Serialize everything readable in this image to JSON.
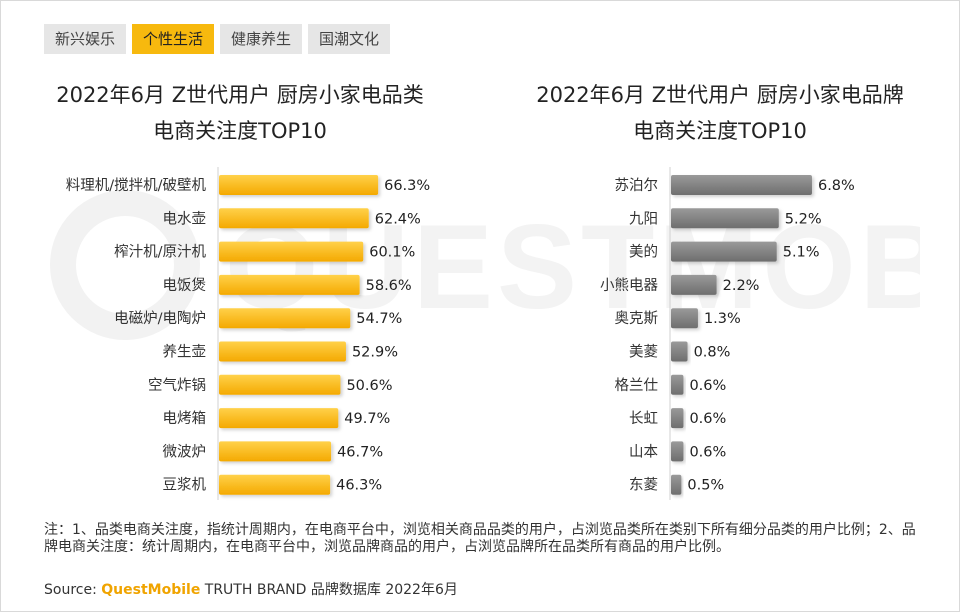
{
  "tabs": [
    {
      "label": "新兴娱乐",
      "active": false
    },
    {
      "label": "个性生活",
      "active": true
    },
    {
      "label": "健康养生",
      "active": false
    },
    {
      "label": "国潮文化",
      "active": false
    }
  ],
  "watermark": "QUESTMOBILE",
  "colors": {
    "category_bar": "#f7b90e",
    "brand_bar": "#808080"
  },
  "chart_data": [
    {
      "type": "bar",
      "orientation": "horizontal",
      "title": "2022年6月 Z世代用户 厨房小家电品类",
      "subtitle": "电商关注度TOP10",
      "categories": [
        "料理机/搅拌机/破壁机",
        "电水壶",
        "榨汁机/原汁机",
        "电饭煲",
        "电磁炉/电陶炉",
        "养生壶",
        "空气炸锅",
        "电烤箱",
        "微波炉",
        "豆浆机"
      ],
      "values": [
        66.3,
        62.4,
        60.1,
        58.6,
        54.7,
        52.9,
        50.6,
        49.7,
        46.7,
        46.3
      ],
      "labels": [
        "66.3%",
        "62.4%",
        "60.1%",
        "58.6%",
        "54.7%",
        "52.9%",
        "50.6%",
        "49.7%",
        "46.7%",
        "46.3%"
      ],
      "unit": "%",
      "xlim": [
        0,
        100
      ]
    },
    {
      "type": "bar",
      "orientation": "horizontal",
      "title": "2022年6月 Z世代用户 厨房小家电品牌",
      "subtitle": "电商关注度TOP10",
      "categories": [
        "苏泊尔",
        "九阳",
        "美的",
        "小熊电器",
        "奥克斯",
        "美菱",
        "格兰仕",
        "长虹",
        "山本",
        "东菱"
      ],
      "values": [
        6.8,
        5.2,
        5.1,
        2.2,
        1.3,
        0.8,
        0.6,
        0.6,
        0.6,
        0.5
      ],
      "labels": [
        "6.8%",
        "5.2%",
        "5.1%",
        "2.2%",
        "1.3%",
        "0.8%",
        "0.6%",
        "0.6%",
        "0.6%",
        "0.5%"
      ],
      "unit": "%",
      "xlim": [
        0,
        8.2
      ]
    }
  ],
  "note": "注：1、品类电商关注度，指统计周期内，在电商平台中，浏览相关商品品类的用户，占浏览品类所在类别下所有细分品类的用户比例；2、品牌电商关注度：统计周期内，在电商平台中，浏览品牌商品的用户，占浏览品牌所在品类所有商品的用户比例。",
  "source": {
    "label": "Source:",
    "brand": "QuestMobile",
    "rest": "TRUTH BRAND 品牌数据库 2022年6月"
  }
}
